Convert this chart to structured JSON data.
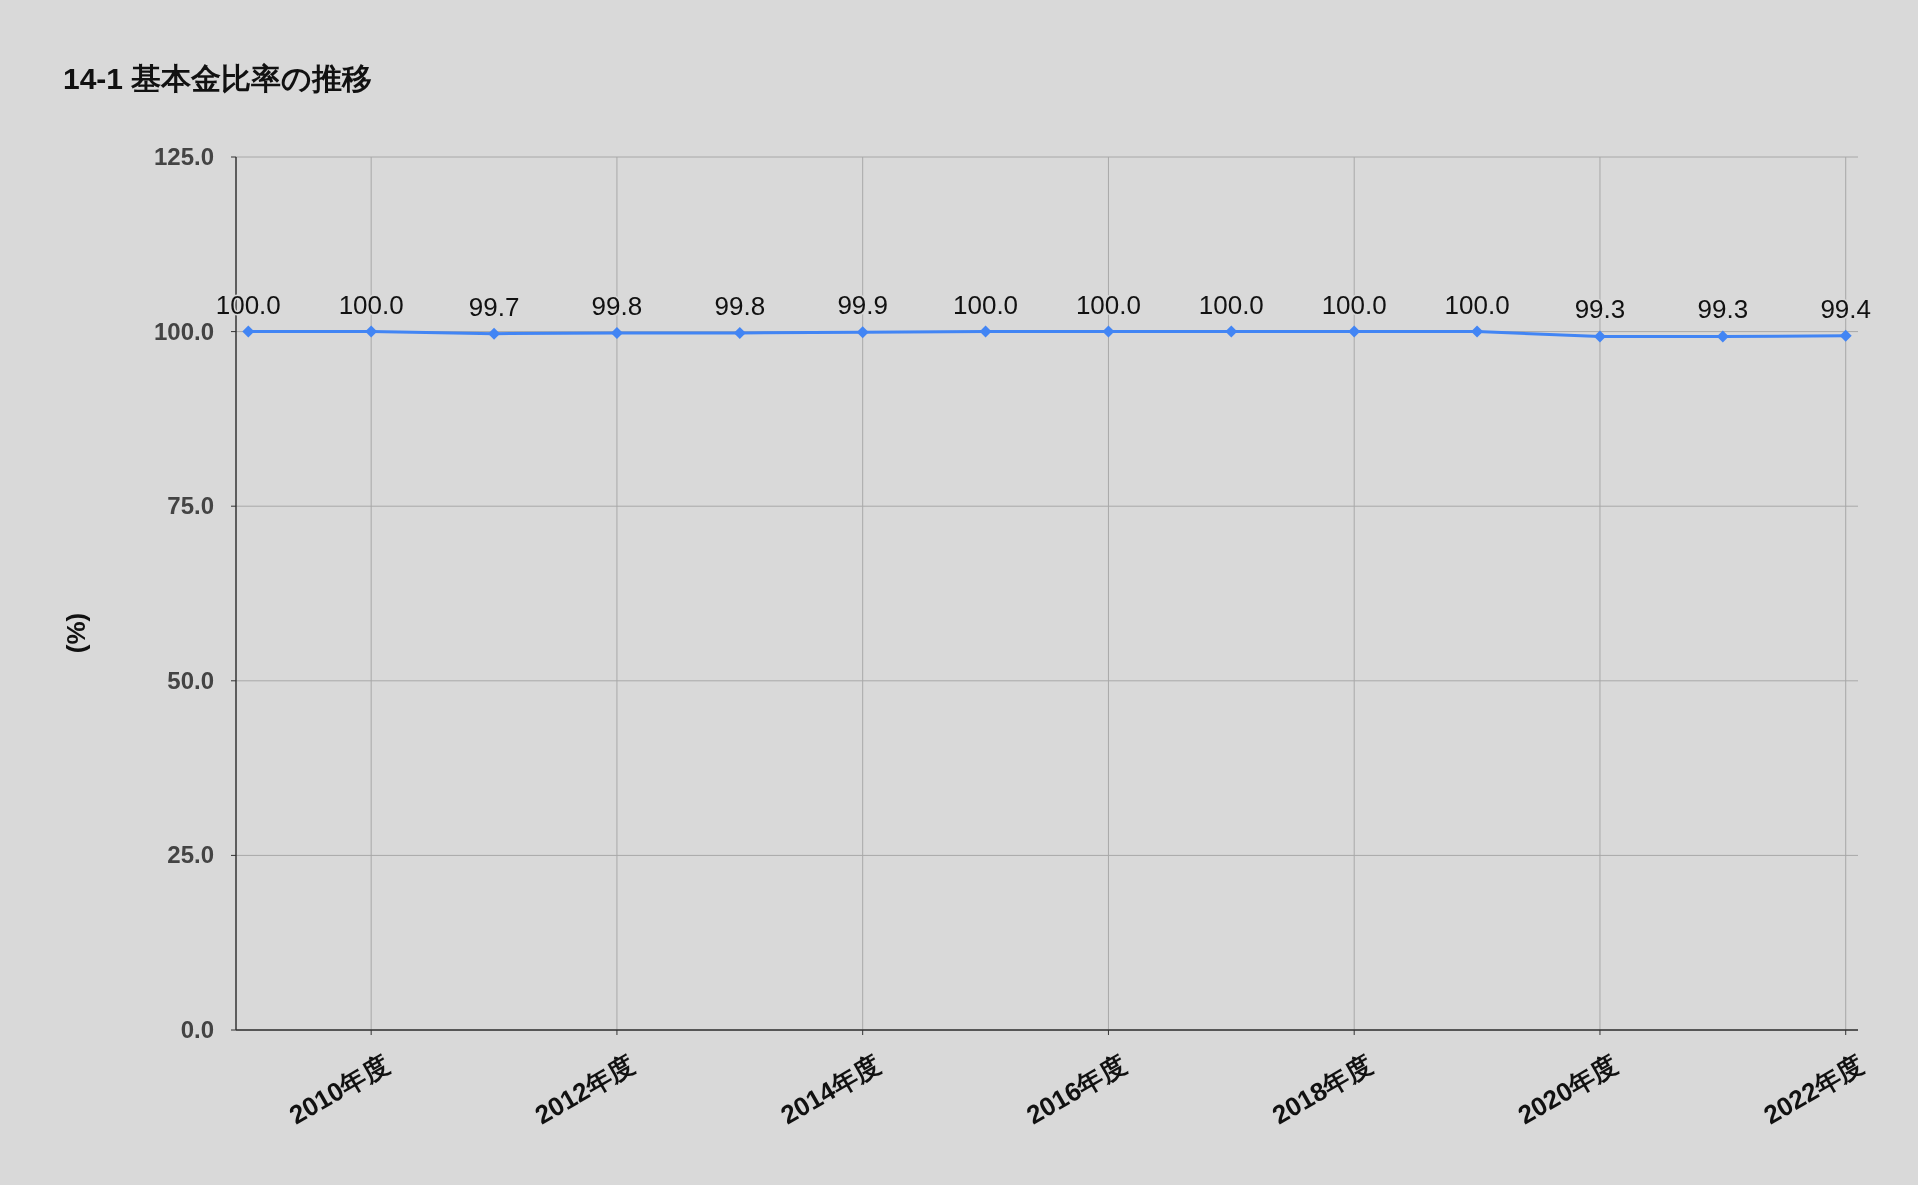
{
  "chart_data": {
    "type": "line",
    "title": "14-1 基本金比率の推移",
    "ylabel": "(%)",
    "x": [
      2009,
      2010,
      2011,
      2012,
      2013,
      2014,
      2015,
      2016,
      2017,
      2018,
      2019,
      2020,
      2021,
      2022
    ],
    "series": [
      {
        "color": "#4285f4",
        "values": [
          100.0,
          100.0,
          99.7,
          99.8,
          99.8,
          99.9,
          100.0,
          100.0,
          100.0,
          100.0,
          100.0,
          99.3,
          99.3,
          99.4
        ],
        "value_labels": [
          "100.0",
          "100.0",
          "99.7",
          "99.8",
          "99.8",
          "99.9",
          "100.0",
          "100.0",
          "100.0",
          "100.0",
          "100.0",
          "99.3",
          "99.3",
          "99.4"
        ]
      }
    ],
    "xlim": [
      2008.9,
      2022.1
    ],
    "xticks": [
      {
        "value": 2010,
        "label": "2010年度"
      },
      {
        "value": 2012,
        "label": "2012年度"
      },
      {
        "value": 2014,
        "label": "2014年度"
      },
      {
        "value": 2016,
        "label": "2016年度"
      },
      {
        "value": 2018,
        "label": "2018年度"
      },
      {
        "value": 2020,
        "label": "2020年度"
      },
      {
        "value": 2022,
        "label": "2022年度"
      }
    ],
    "ylim": [
      0,
      125
    ],
    "yticks": [
      {
        "value": 0,
        "label": "0.0"
      },
      {
        "value": 25,
        "label": "25.0"
      },
      {
        "value": 50,
        "label": "50.0"
      },
      {
        "value": 75,
        "label": "75.0"
      },
      {
        "value": 100,
        "label": "100.0"
      },
      {
        "value": 125,
        "label": "125.0"
      }
    ],
    "grid": true,
    "marker": "diamond",
    "line_style": "solid"
  }
}
